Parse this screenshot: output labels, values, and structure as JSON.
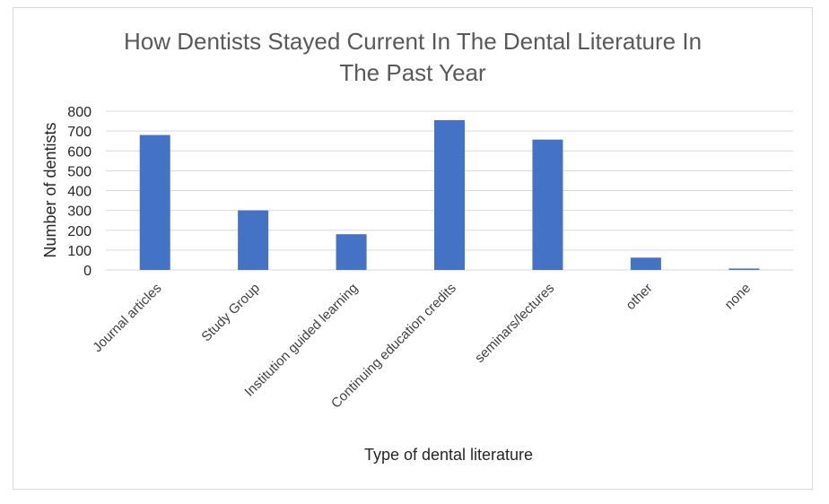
{
  "chart_data": {
    "type": "bar",
    "title": "How Dentists Stayed Current In The Dental Literature In The Past Year",
    "title_lines": [
      "How Dentists Stayed Current In The Dental Literature In",
      "The Past Year"
    ],
    "xlabel": "Type of dental literature",
    "ylabel": "Number of dentists",
    "categories": [
      "Journal articles",
      "Study Group",
      "Institution guided learning",
      "Continuing education credits",
      "seminars/lectures",
      "other",
      "none"
    ],
    "values": [
      680,
      300,
      180,
      755,
      657,
      62,
      7
    ],
    "ylim": [
      0,
      800
    ],
    "yticks": [
      0,
      100,
      200,
      300,
      400,
      500,
      600,
      700,
      800
    ],
    "grid": true,
    "legend": "none",
    "bar_color": "#4472c4",
    "grid_color": "#d9d9d9"
  }
}
